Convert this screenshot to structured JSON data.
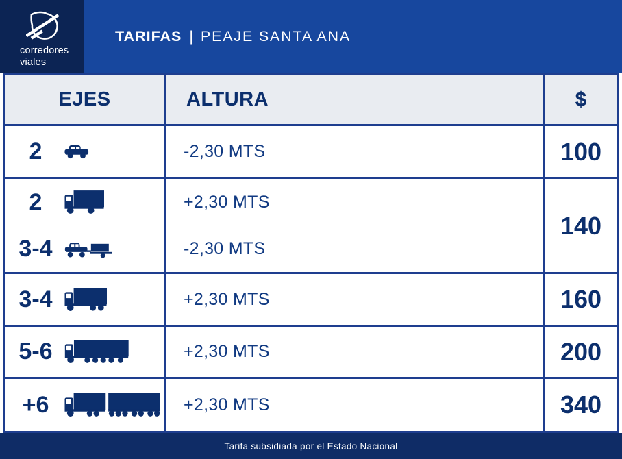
{
  "header": {
    "logo_line1": "corredores",
    "logo_line2": "viales",
    "title_bold": "TARIFAS",
    "title_separator": "|",
    "title_location": "PEAJE SANTA ANA"
  },
  "table": {
    "columns": [
      {
        "id": "ejes",
        "label": "EJES"
      },
      {
        "id": "altura",
        "label": "ALTURA"
      },
      {
        "id": "price",
        "label": "$"
      }
    ],
    "rows": [
      {
        "lines": [
          {
            "axles": "2",
            "icon": "car-icon"
          }
        ],
        "alturas": [
          "-2,30 MTS"
        ],
        "price": "100"
      },
      {
        "lines": [
          {
            "axles": "2",
            "icon": "box-truck-icon"
          },
          {
            "axles": "3-4",
            "icon": "car-trailer-icon"
          }
        ],
        "alturas": [
          "+2,30 MTS",
          "-2,30 MTS"
        ],
        "price": "140"
      },
      {
        "lines": [
          {
            "axles": "3-4",
            "icon": "truck-icon"
          }
        ],
        "alturas": [
          "+2,30 MTS"
        ],
        "price": "160"
      },
      {
        "lines": [
          {
            "axles": "5-6",
            "icon": "semi-trailer-icon"
          }
        ],
        "alturas": [
          "+2,30 MTS"
        ],
        "price": "200"
      },
      {
        "lines": [
          {
            "axles": "+6",
            "icon": "road-train-icon"
          }
        ],
        "alturas": [
          "+2,30 MTS"
        ],
        "price": "340"
      }
    ]
  },
  "footer": {
    "text": "Tarifa subsidiada por el Estado Nacional"
  },
  "colors": {
    "header_blue": "#17479E",
    "panel_navy": "#0C2454",
    "footer_navy": "#0F2C66",
    "border_navy": "#1E3E8F",
    "text_navy": "#0C2F6D",
    "value_navy": "#113A82",
    "header_cell_bg": "#E9ECF1"
  }
}
